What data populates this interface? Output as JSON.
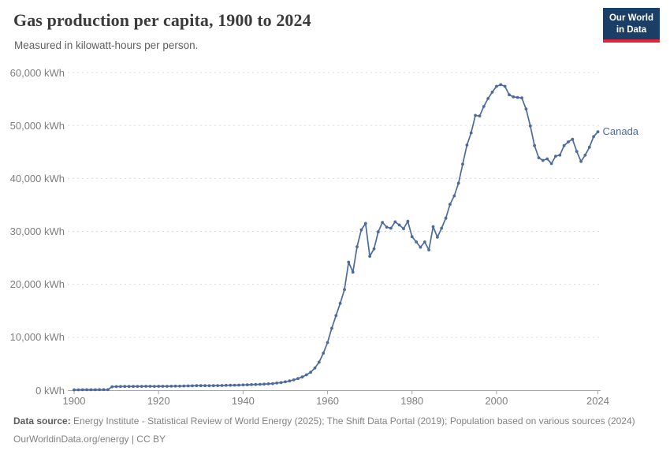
{
  "header": {
    "title": "Gas production per capita, 1900 to 2024",
    "subtitle": "Measured in kilowatt-hours per person.",
    "logo_line1": "Our World",
    "logo_line2": "in Data"
  },
  "footer": {
    "source_label": "Data source:",
    "source_text": "Energy Institute - Statistical Review of World Energy (2025); The Shift Data Portal (2019); Population based on various sources (2024)",
    "license_line": "OurWorldinData.org/energy | CC BY"
  },
  "colors": {
    "series_blue": "#4C6A9C",
    "logo_background": "#1B3E66",
    "logo_red": "#E5243B",
    "gridline": "#dadada",
    "axis": "#a5a5a5",
    "tick_text": "#7d7d7d"
  },
  "chart_data": {
    "type": "line",
    "title": "Gas production per capita, 1900 to 2024",
    "subtitle": "Measured in kilowatt-hours per person.",
    "unit": "kWh",
    "xlabel": "",
    "ylabel": "",
    "x_range": [
      1900,
      2024
    ],
    "y_range": [
      0,
      60000
    ],
    "grid": "horizontal dashed",
    "legend_position": "end-of-line label",
    "y_ticks": [
      {
        "value": 0,
        "label": "0 kWh"
      },
      {
        "value": 10000,
        "label": "10,000 kWh"
      },
      {
        "value": 20000,
        "label": "20,000 kWh"
      },
      {
        "value": 30000,
        "label": "30,000 kWh"
      },
      {
        "value": 40000,
        "label": "40,000 kWh"
      },
      {
        "value": 50000,
        "label": "50,000 kWh"
      },
      {
        "value": 60000,
        "label": "60,000 kWh"
      }
    ],
    "x_ticks": [
      {
        "value": 1900,
        "label": "1900"
      },
      {
        "value": 1920,
        "label": "1920"
      },
      {
        "value": 1940,
        "label": "1940"
      },
      {
        "value": 1960,
        "label": "1960"
      },
      {
        "value": 1980,
        "label": "1980"
      },
      {
        "value": 2000,
        "label": "2000"
      },
      {
        "value": 2024,
        "label": "2024"
      }
    ],
    "series": [
      {
        "name": "Canada",
        "color": "#4C6A9C",
        "points": [
          [
            1900,
            80
          ],
          [
            1901,
            80
          ],
          [
            1902,
            85
          ],
          [
            1903,
            90
          ],
          [
            1904,
            90
          ],
          [
            1905,
            95
          ],
          [
            1906,
            100
          ],
          [
            1907,
            100
          ],
          [
            1908,
            110
          ],
          [
            1909,
            650
          ],
          [
            1910,
            680
          ],
          [
            1911,
            700
          ],
          [
            1912,
            710
          ],
          [
            1913,
            720
          ],
          [
            1914,
            720
          ],
          [
            1915,
            730
          ],
          [
            1916,
            730
          ],
          [
            1917,
            740
          ],
          [
            1918,
            740
          ],
          [
            1919,
            730
          ],
          [
            1920,
            740
          ],
          [
            1921,
            740
          ],
          [
            1922,
            750
          ],
          [
            1923,
            760
          ],
          [
            1924,
            770
          ],
          [
            1925,
            780
          ],
          [
            1926,
            800
          ],
          [
            1927,
            820
          ],
          [
            1928,
            840
          ],
          [
            1929,
            860
          ],
          [
            1930,
            870
          ],
          [
            1931,
            860
          ],
          [
            1932,
            850
          ],
          [
            1933,
            860
          ],
          [
            1934,
            880
          ],
          [
            1935,
            900
          ],
          [
            1936,
            920
          ],
          [
            1937,
            940
          ],
          [
            1938,
            950
          ],
          [
            1939,
            970
          ],
          [
            1940,
            1000
          ],
          [
            1941,
            1030
          ],
          [
            1942,
            1060
          ],
          [
            1943,
            1090
          ],
          [
            1944,
            1120
          ],
          [
            1945,
            1150
          ],
          [
            1946,
            1200
          ],
          [
            1947,
            1250
          ],
          [
            1948,
            1350
          ],
          [
            1949,
            1450
          ],
          [
            1950,
            1600
          ],
          [
            1951,
            1750
          ],
          [
            1952,
            1950
          ],
          [
            1953,
            2200
          ],
          [
            1954,
            2500
          ],
          [
            1955,
            2900
          ],
          [
            1956,
            3400
          ],
          [
            1957,
            4200
          ],
          [
            1958,
            5300
          ],
          [
            1959,
            7000
          ],
          [
            1960,
            9000
          ],
          [
            1961,
            11700
          ],
          [
            1962,
            14100
          ],
          [
            1963,
            16400
          ],
          [
            1964,
            19000
          ],
          [
            1965,
            24200
          ],
          [
            1966,
            22300
          ],
          [
            1967,
            27100
          ],
          [
            1968,
            30300
          ],
          [
            1969,
            31500
          ],
          [
            1970,
            25300
          ],
          [
            1971,
            26700
          ],
          [
            1972,
            29900
          ],
          [
            1973,
            31700
          ],
          [
            1974,
            30800
          ],
          [
            1975,
            30600
          ],
          [
            1976,
            31800
          ],
          [
            1977,
            31200
          ],
          [
            1978,
            30500
          ],
          [
            1979,
            31900
          ],
          [
            1980,
            29000
          ],
          [
            1981,
            28000
          ],
          [
            1982,
            27000
          ],
          [
            1983,
            28000
          ],
          [
            1984,
            26500
          ],
          [
            1985,
            30900
          ],
          [
            1986,
            28900
          ],
          [
            1987,
            30600
          ],
          [
            1988,
            32500
          ],
          [
            1989,
            35100
          ],
          [
            1990,
            36700
          ],
          [
            1991,
            39100
          ],
          [
            1992,
            42700
          ],
          [
            1993,
            46300
          ],
          [
            1994,
            48600
          ],
          [
            1995,
            51900
          ],
          [
            1996,
            51800
          ],
          [
            1997,
            53600
          ],
          [
            1998,
            55100
          ],
          [
            1999,
            56300
          ],
          [
            2000,
            57400
          ],
          [
            2001,
            57700
          ],
          [
            2002,
            57400
          ],
          [
            2003,
            55800
          ],
          [
            2004,
            55400
          ],
          [
            2005,
            55300
          ],
          [
            2006,
            55200
          ],
          [
            2007,
            53100
          ],
          [
            2008,
            49900
          ],
          [
            2009,
            46200
          ],
          [
            2010,
            43900
          ],
          [
            2011,
            43400
          ],
          [
            2012,
            43700
          ],
          [
            2013,
            42800
          ],
          [
            2014,
            44200
          ],
          [
            2015,
            44400
          ],
          [
            2016,
            46200
          ],
          [
            2017,
            46900
          ],
          [
            2018,
            47400
          ],
          [
            2019,
            45100
          ],
          [
            2020,
            43200
          ],
          [
            2021,
            44400
          ],
          [
            2022,
            45900
          ],
          [
            2023,
            47900
          ],
          [
            2024,
            48800
          ]
        ]
      }
    ]
  }
}
